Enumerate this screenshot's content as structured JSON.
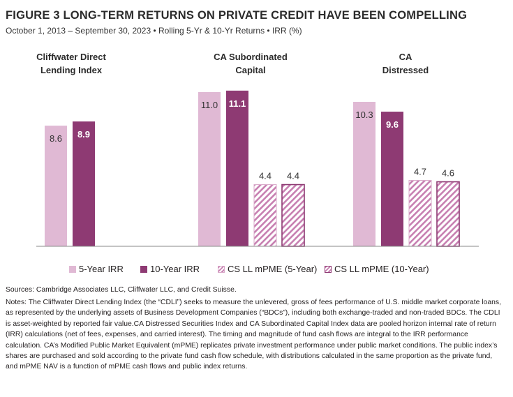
{
  "title": "FIGURE 3   LONG-TERM RETURNS ON PRIVATE CREDIT HAVE BEEN COMPELLING",
  "subtitle": "October 1, 2013 – September 30, 2023 • Rolling 5-Yr & 10-Yr Returns • IRR (%)",
  "colors": {
    "five_year": "#e0b9d4",
    "ten_year": "#8e3a73",
    "hatch": "#8e3a73",
    "axis": "#8a8a8a",
    "label_light": "#ffffff",
    "label_dark": "#333333"
  },
  "chart_data": {
    "type": "bar",
    "title": "LONG-TERM RETURNS ON PRIVATE CREDIT HAVE BEEN COMPELLING",
    "categories": [
      "Cliffwater Direct Lending Index",
      "CA Subordinated Capital",
      "CA Distressed"
    ],
    "category_label_lines": [
      [
        "Cliffwater Direct",
        "Lending Index"
      ],
      [
        "CA Subordinated",
        "Capital"
      ],
      [
        "CA",
        "Distressed"
      ]
    ],
    "series": [
      {
        "name": "5-Year IRR",
        "values": [
          8.6,
          11.0,
          10.3
        ],
        "labels": [
          "8.6",
          "11.0",
          "10.3"
        ],
        "style": "solid-light"
      },
      {
        "name": "10-Year IRR",
        "values": [
          8.9,
          11.1,
          9.6
        ],
        "labels": [
          "8.9",
          "11.1",
          "9.6"
        ],
        "style": "solid-dark"
      },
      {
        "name": "CS LL mPME (5-Year)",
        "values": [
          null,
          4.4,
          4.7
        ],
        "labels": [
          "",
          "4.4",
          "4.7"
        ],
        "style": "hatch-light"
      },
      {
        "name": "CS LL mPME (10-Year)",
        "values": [
          null,
          4.4,
          4.6
        ],
        "labels": [
          "",
          "4.4",
          "4.6"
        ],
        "style": "hatch-dark"
      }
    ],
    "ylim": [
      0,
      12
    ],
    "grid": false,
    "legend_position": "bottom"
  },
  "footer": {
    "sources": "Sources: Cambridge Associates LLC, Cliffwater LLC, and Credit Suisse.",
    "notes": "Notes: The Cliffwater Direct Lending Index (the “CDLI”) seeks to measure the unlevered, gross of fees performance of U.S. middle market corporate loans, as represented by the underlying assets of Business Development Companies (“BDCs”), including both exchange-traded and non-traded BDCs. The CDLI is asset-weighted by reported fair value.CA Distressed Securities Index and CA Subordinated Capital Index data are pooled horizon internal rate of return (IRR) calculations (net of fees, expenses, and carried interest). The timing and magnitude of fund cash flows are integral to the IRR performance calculation. CA’s Modified Public Market Equivalent (mPME) replicates private investment performance under public market conditions. The public index’s shares are purchased and sold according to the private fund cash flow schedule, with distributions calculated in the same proportion as the private fund, and mPME NAV is a function of mPME cash flows and public index returns."
  }
}
